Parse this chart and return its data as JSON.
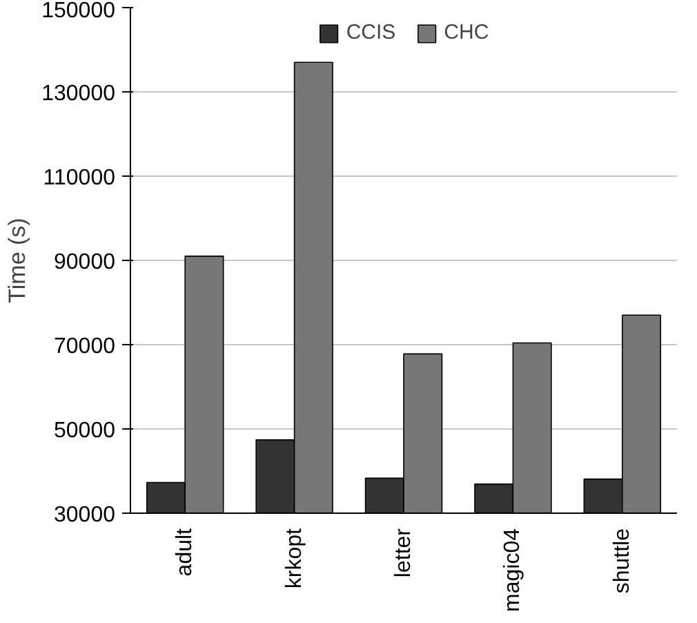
{
  "chart_data": {
    "type": "bar",
    "ylabel": "Time (s)",
    "categories": [
      "adult",
      "krkopt",
      "letter",
      "magic04",
      "shuttle"
    ],
    "series": [
      {
        "name": "CCIS",
        "color": "#333333",
        "values": [
          37300,
          47400,
          38300,
          36900,
          38100
        ]
      },
      {
        "name": "CHC",
        "color": "#777777",
        "values": [
          91000,
          137000,
          67800,
          70400,
          77000
        ]
      }
    ],
    "ylim": [
      30000,
      150000
    ],
    "yticks": [
      30000,
      50000,
      70000,
      90000,
      110000,
      130000,
      150000
    ],
    "legend": "top",
    "grid": "y"
  }
}
